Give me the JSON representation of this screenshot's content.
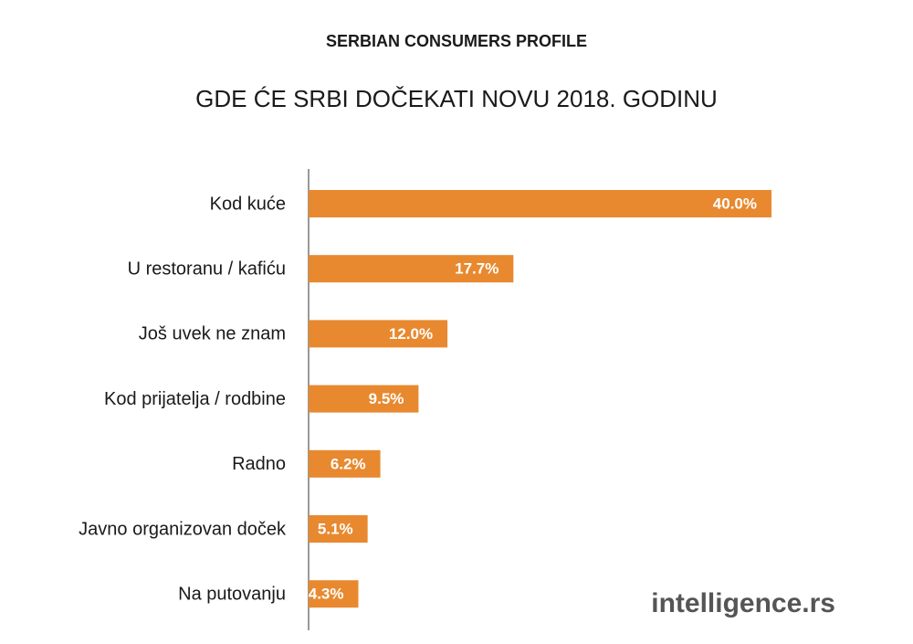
{
  "chart_data": {
    "type": "hbar",
    "title": "SERBIAN CONSUMERS PROFILE",
    "subtitle": "GDE ĆE SRBI DOČEKATI NOVU 2018. GODINU",
    "source": "intelligence.rs",
    "categories": [
      "Kod kuće",
      "U restoranu / kafiću",
      "Još uvek ne znam",
      "Kod prijatelja / rodbine",
      "Radno",
      "Javno organizovan doček",
      "Na putovanju"
    ],
    "values": [
      40.0,
      17.7,
      12.0,
      9.5,
      6.2,
      5.1,
      4.3
    ],
    "value_labels": [
      "40.0%",
      "17.7%",
      "12.0%",
      "9.5%",
      "6.2%",
      "5.1%",
      "4.3%"
    ],
    "color": "#e8892f"
  }
}
